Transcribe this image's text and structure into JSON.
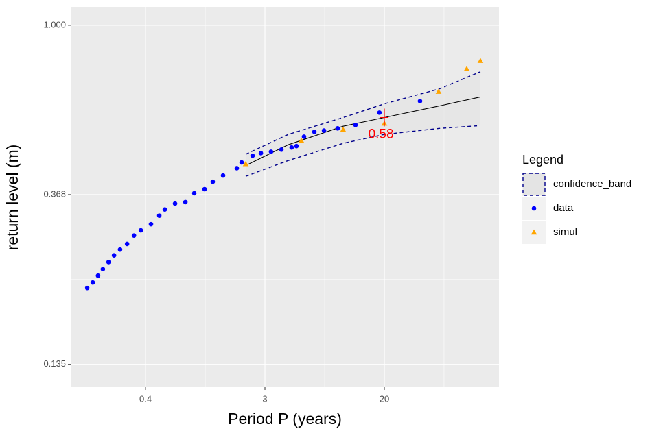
{
  "chart_data": {
    "type": "scatter",
    "x_label": "Period P (years)",
    "y_label": "return level (m)",
    "legend_title": "Legend",
    "legend_position": "right",
    "log_x": true,
    "log_y": true,
    "grid": true,
    "xlim": [
      0.105,
      137
    ],
    "ylim": [
      0.118,
      1.115
    ],
    "xticks": [
      {
        "value": 0.368,
        "label": "0.4"
      },
      {
        "value": 2.718,
        "label": "3"
      },
      {
        "value": 20.09,
        "label": "20"
      }
    ],
    "yticks": [
      0.135,
      0.368,
      {
        "value": 1,
        "label": "1.000"
      }
    ],
    "series": [
      {
        "name": "confidence_band",
        "kind": "band",
        "color": "#00008b",
        "fill": "#e4e4e4",
        "fit_color": "#000000",
        "x": [
          1.97,
          4.02,
          10.07,
          20.1,
          50.4,
          100.4
        ],
        "upper": [
          0.467,
          0.525,
          0.58,
          0.629,
          0.687,
          0.76
        ],
        "fit": [
          0.437,
          0.494,
          0.551,
          0.58,
          0.621,
          0.655
        ],
        "lower": [
          0.41,
          0.45,
          0.498,
          0.525,
          0.544,
          0.553
        ]
      },
      {
        "name": "data",
        "kind": "point",
        "color": "#0000ff",
        "x": [
          0.1385,
          0.152,
          0.166,
          0.18,
          0.198,
          0.217,
          0.24,
          0.27,
          0.303,
          0.34,
          0.403,
          0.463,
          0.508,
          0.603,
          0.717,
          0.832,
          0.989,
          1.134,
          1.348,
          1.697,
          1.839,
          2.21,
          2.54,
          3.01,
          3.58,
          4.25,
          4.61,
          5.23,
          6.22,
          7.31,
          9.19,
          12.39,
          18.5,
          36.5
        ],
        "values": [
          0.212,
          0.219,
          0.228,
          0.237,
          0.247,
          0.257,
          0.266,
          0.275,
          0.289,
          0.298,
          0.309,
          0.325,
          0.337,
          0.349,
          0.352,
          0.371,
          0.38,
          0.397,
          0.412,
          0.43,
          0.445,
          0.463,
          0.47,
          0.474,
          0.48,
          0.486,
          0.49,
          0.518,
          0.533,
          0.537,
          0.544,
          0.555,
          0.597,
          0.639
        ]
      },
      {
        "name": "simul",
        "kind": "triangle",
        "color": "#ffa500",
        "x": [
          1.97,
          5.0,
          10.07,
          20.1,
          49.8,
          79.8,
          100.4
        ],
        "values": [
          0.441,
          0.506,
          0.54,
          0.56,
          0.676,
          0.773,
          0.811
        ]
      }
    ],
    "annotations": [
      {
        "text": "0.58",
        "x": 20.1,
        "y": 0.58,
        "color": "#ff0000"
      }
    ]
  }
}
